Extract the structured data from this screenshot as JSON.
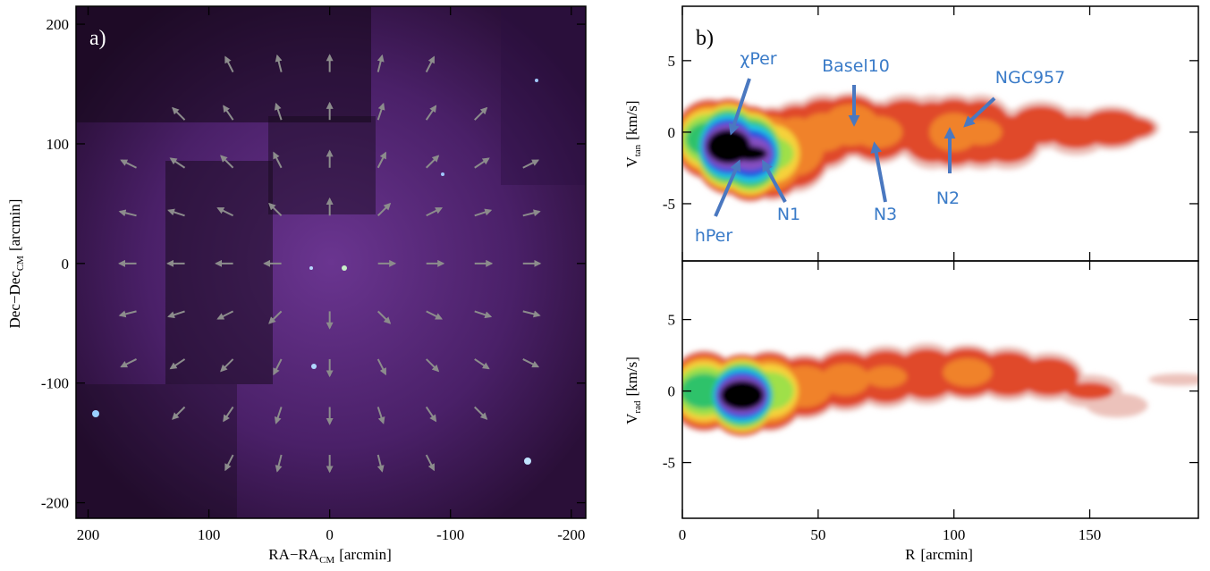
{
  "chart_data": [
    {
      "type": "vector",
      "panel_label": "a)",
      "xlabel": "RA−RA",
      "xlabel_sub": "CM",
      "xlabel_unit": "[arcmin]",
      "ylabel": "Dec−Dec",
      "ylabel_sub": "CM",
      "ylabel_unit": "[arcmin]",
      "xlim": [
        210,
        -212
      ],
      "ylim": [
        -213,
        215
      ],
      "xticks": [
        200,
        100,
        0,
        -100,
        -200
      ],
      "yticks": [
        -200,
        -100,
        0,
        100,
        200
      ],
      "arrow_color": "#8c8c8c",
      "x": [
        -80,
        -40,
        0,
        40,
        80,
        -120,
        -80,
        -40,
        0,
        40,
        80,
        120,
        -160,
        -120,
        -80,
        -40,
        0,
        40,
        80,
        120,
        160,
        -160,
        -120,
        -80,
        -40,
        0,
        40,
        80,
        120,
        160,
        -160,
        -120,
        -80,
        -40,
        40,
        80,
        120,
        160,
        -160,
        -120,
        -80,
        -40,
        0,
        40,
        80,
        120,
        160,
        -160,
        -120,
        -80,
        -40,
        0,
        40,
        80,
        120,
        160,
        -120,
        -80,
        -40,
        0,
        40,
        80,
        120,
        -80,
        -40,
        0,
        40,
        80
      ],
      "y": [
        160,
        160,
        160,
        160,
        160,
        120,
        120,
        120,
        120,
        120,
        120,
        120,
        80,
        80,
        80,
        80,
        80,
        80,
        80,
        80,
        80,
        40,
        40,
        40,
        40,
        40,
        40,
        40,
        40,
        40,
        0,
        0,
        0,
        0,
        0,
        0,
        0,
        0,
        -40,
        -40,
        -40,
        -40,
        -40,
        -40,
        -40,
        -40,
        -40,
        -80,
        -80,
        -80,
        -80,
        -80,
        -80,
        -80,
        -80,
        -80,
        -120,
        -120,
        -120,
        -120,
        -120,
        -120,
        -120,
        -160,
        -160,
        -160,
        -160,
        -160
      ],
      "u": [
        -6.3,
        -3.4,
        0,
        3.4,
        6.3,
        -9.9,
        -7.8,
        -4.4,
        0,
        4.4,
        7.8,
        9.9,
        -12.5,
        -11.6,
        -9.9,
        -6.3,
        0,
        6.3,
        9.9,
        11.6,
        12.5,
        -13.6,
        -13.3,
        -12.5,
        -9.9,
        0,
        9.9,
        12.5,
        13.3,
        13.6,
        -14,
        -14,
        -14,
        -14,
        14,
        14,
        14,
        14,
        -13.6,
        -13.3,
        -12.5,
        -9.9,
        0,
        9.9,
        12.5,
        13.3,
        13.6,
        -12.5,
        -11.6,
        -9.9,
        -6.3,
        0,
        6.3,
        9.9,
        11.6,
        12.5,
        -9.9,
        -7.8,
        -4.4,
        0,
        4.4,
        7.8,
        9.9,
        -6.3,
        -3.4,
        0,
        3.4,
        6.3
      ],
      "v": [
        12.5,
        13.6,
        14,
        13.6,
        12.5,
        9.9,
        11.6,
        13.3,
        14,
        13.3,
        11.6,
        9.9,
        6.3,
        7.8,
        9.9,
        12.5,
        14,
        12.5,
        9.9,
        7.8,
        6.3,
        3.4,
        4.4,
        6.3,
        9.9,
        14,
        9.9,
        6.3,
        4.4,
        3.4,
        0,
        0,
        0,
        0,
        0,
        0,
        0,
        0,
        -3.4,
        -4.4,
        -6.3,
        -9.9,
        -14,
        -9.9,
        -6.3,
        -4.4,
        -3.4,
        -6.3,
        -7.8,
        -9.9,
        -12.5,
        -14,
        -12.5,
        -9.9,
        -7.8,
        -6.3,
        -9.9,
        -11.6,
        -13.3,
        -14,
        -13.3,
        -11.6,
        -9.9,
        -12.5,
        -13.6,
        -14,
        -13.6,
        -12.5
      ]
    },
    {
      "type": "density",
      "panel_label": "b)",
      "ylabel": "V",
      "ylabel_sub": "tan",
      "ylabel_unit": "[km/s]",
      "xlim": [
        0,
        190
      ],
      "ylim": [
        -9,
        8.8
      ],
      "yticks": [
        -5,
        0,
        5
      ],
      "x": [
        10,
        17,
        25,
        33,
        42,
        52,
        62,
        72,
        82,
        92,
        100,
        110,
        120,
        132,
        145,
        158,
        163
      ],
      "y": [
        -0.5,
        -1,
        -1.5,
        -1.5,
        -1,
        0,
        0.5,
        0,
        0.5,
        0,
        0,
        0,
        -0.5,
        0.5,
        0,
        0.3,
        0.3
      ],
      "spread": [
        3,
        3.5,
        3.5,
        3.5,
        3.5,
        3,
        2.5,
        2.5,
        2.5,
        3,
        3,
        3,
        2.5,
        2,
        2,
        1.8,
        1.2
      ],
      "density": [
        0.6,
        1,
        0.9,
        0.45,
        0.3,
        0.25,
        0.3,
        0.25,
        0.2,
        0.2,
        0.25,
        0.22,
        0.18,
        0.18,
        0.15,
        0.2,
        0.18
      ],
      "colorscale": [
        {
          "level": 0.05,
          "color": "#ecc2bb"
        },
        {
          "level": 0.1,
          "color": "#e04a2c"
        },
        {
          "level": 0.2,
          "color": "#f0822a"
        },
        {
          "level": 0.3,
          "color": "#f6d23a"
        },
        {
          "level": 0.4,
          "color": "#9fe04a"
        },
        {
          "level": 0.5,
          "color": "#2ec26a"
        },
        {
          "level": 0.6,
          "color": "#22c6e6"
        },
        {
          "level": 0.7,
          "color": "#2452e0"
        },
        {
          "level": 0.8,
          "color": "#8650c2"
        },
        {
          "level": 0.88,
          "color": "#000000"
        }
      ],
      "annotations": [
        "χPer",
        "Basel10",
        "NGC957",
        "hPer",
        "N1",
        "N3",
        "N2"
      ]
    },
    {
      "type": "density",
      "xlabel": "R",
      "xlabel_unit": "[arcmin]",
      "ylabel": "V",
      "ylabel_sub": "rad",
      "ylabel_unit": "[km/s]",
      "xlim": [
        0,
        190
      ],
      "ylim": [
        -8.9,
        9.1
      ],
      "xticks": [
        0,
        50,
        100,
        150
      ],
      "yticks": [
        -5,
        0,
        5
      ],
      "x": [
        8,
        22,
        32,
        45,
        60,
        75,
        90,
        105,
        120,
        135,
        150,
        160,
        183
      ],
      "y": [
        0,
        -0.3,
        0,
        0.3,
        0.8,
        1,
        1.2,
        1.3,
        1.2,
        1,
        0,
        -1,
        0.8
      ],
      "spread": [
        3,
        3,
        3,
        2.5,
        2.5,
        2.5,
        2.5,
        2.2,
        2.2,
        2,
        1.5,
        1.2,
        0.6
      ],
      "density": [
        0.6,
        1,
        0.5,
        0.3,
        0.25,
        0.22,
        0.2,
        0.25,
        0.2,
        0.18,
        0.12,
        0.1,
        0.1
      ],
      "colorscale": [
        {
          "level": 0.05,
          "color": "#ecc2bb"
        },
        {
          "level": 0.1,
          "color": "#e04a2c"
        },
        {
          "level": 0.2,
          "color": "#f0822a"
        },
        {
          "level": 0.3,
          "color": "#f6d23a"
        },
        {
          "level": 0.4,
          "color": "#9fe04a"
        },
        {
          "level": 0.5,
          "color": "#2ec26a"
        },
        {
          "level": 0.6,
          "color": "#22c6e6"
        },
        {
          "level": 0.7,
          "color": "#2452e0"
        },
        {
          "level": 0.8,
          "color": "#8650c2"
        },
        {
          "level": 0.88,
          "color": "#000000"
        }
      ]
    }
  ]
}
